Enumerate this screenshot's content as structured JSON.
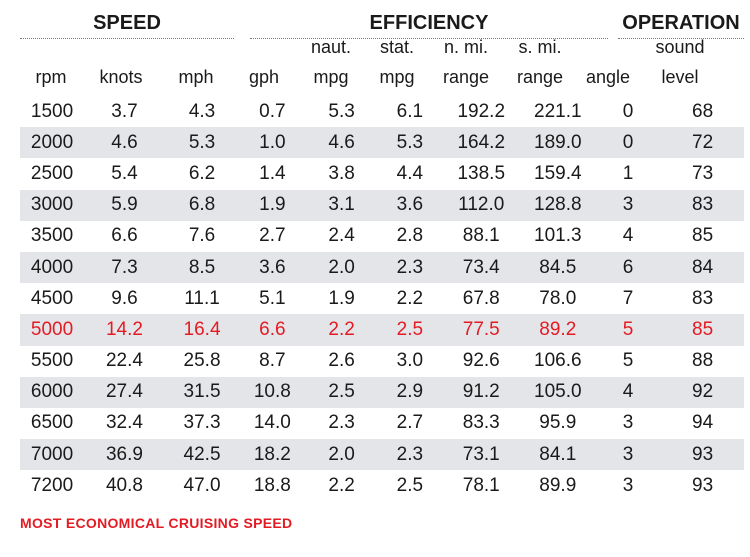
{
  "groups": {
    "speed": "SPEED",
    "efficiency": "EFFICIENCY",
    "operation": "OPERATION"
  },
  "columns": [
    {
      "l1": "",
      "l2": "rpm"
    },
    {
      "l1": "",
      "l2": "knots"
    },
    {
      "l1": "",
      "l2": "mph"
    },
    {
      "l1": "",
      "l2": "gph"
    },
    {
      "l1": "naut.",
      "l2": "mpg"
    },
    {
      "l1": "stat.",
      "l2": "mpg"
    },
    {
      "l1": "n. mi.",
      "l2": "range"
    },
    {
      "l1": "s. mi.",
      "l2": "range"
    },
    {
      "l1": "",
      "l2": "angle"
    },
    {
      "l1": "sound",
      "l2": "level"
    }
  ],
  "chart_data": {
    "type": "table",
    "highlight_row": 7,
    "highlight_color": "#e31b23",
    "shade_color": "#e4e5e9",
    "rows": [
      [
        "1500",
        "3.7",
        "4.3",
        "0.7",
        "5.3",
        "6.1",
        "192.2",
        "221.1",
        "0",
        "68"
      ],
      [
        "2000",
        "4.6",
        "5.3",
        "1.0",
        "4.6",
        "5.3",
        "164.2",
        "189.0",
        "0",
        "72"
      ],
      [
        "2500",
        "5.4",
        "6.2",
        "1.4",
        "3.8",
        "4.4",
        "138.5",
        "159.4",
        "1",
        "73"
      ],
      [
        "3000",
        "5.9",
        "6.8",
        "1.9",
        "3.1",
        "3.6",
        "112.0",
        "128.8",
        "3",
        "83"
      ],
      [
        "3500",
        "6.6",
        "7.6",
        "2.7",
        "2.4",
        "2.8",
        "88.1",
        "101.3",
        "4",
        "85"
      ],
      [
        "4000",
        "7.3",
        "8.5",
        "3.6",
        "2.0",
        "2.3",
        "73.4",
        "84.5",
        "6",
        "84"
      ],
      [
        "4500",
        "9.6",
        "11.1",
        "5.1",
        "1.9",
        "2.2",
        "67.8",
        "78.0",
        "7",
        "83"
      ],
      [
        "5000",
        "14.2",
        "16.4",
        "6.6",
        "2.2",
        "2.5",
        "77.5",
        "89.2",
        "5",
        "85"
      ],
      [
        "5500",
        "22.4",
        "25.8",
        "8.7",
        "2.6",
        "3.0",
        "92.6",
        "106.6",
        "5",
        "88"
      ],
      [
        "6000",
        "27.4",
        "31.5",
        "10.8",
        "2.5",
        "2.9",
        "91.2",
        "105.0",
        "4",
        "92"
      ],
      [
        "6500",
        "32.4",
        "37.3",
        "14.0",
        "2.3",
        "2.7",
        "83.3",
        "95.9",
        "3",
        "94"
      ],
      [
        "7000",
        "36.9",
        "42.5",
        "18.2",
        "2.0",
        "2.3",
        "73.1",
        "84.1",
        "3",
        "93"
      ],
      [
        "7200",
        "40.8",
        "47.0",
        "18.8",
        "2.2",
        "2.5",
        "78.1",
        "89.9",
        "3",
        "93"
      ]
    ]
  },
  "footnote": "MOST ECONOMICAL CRUISING SPEED"
}
